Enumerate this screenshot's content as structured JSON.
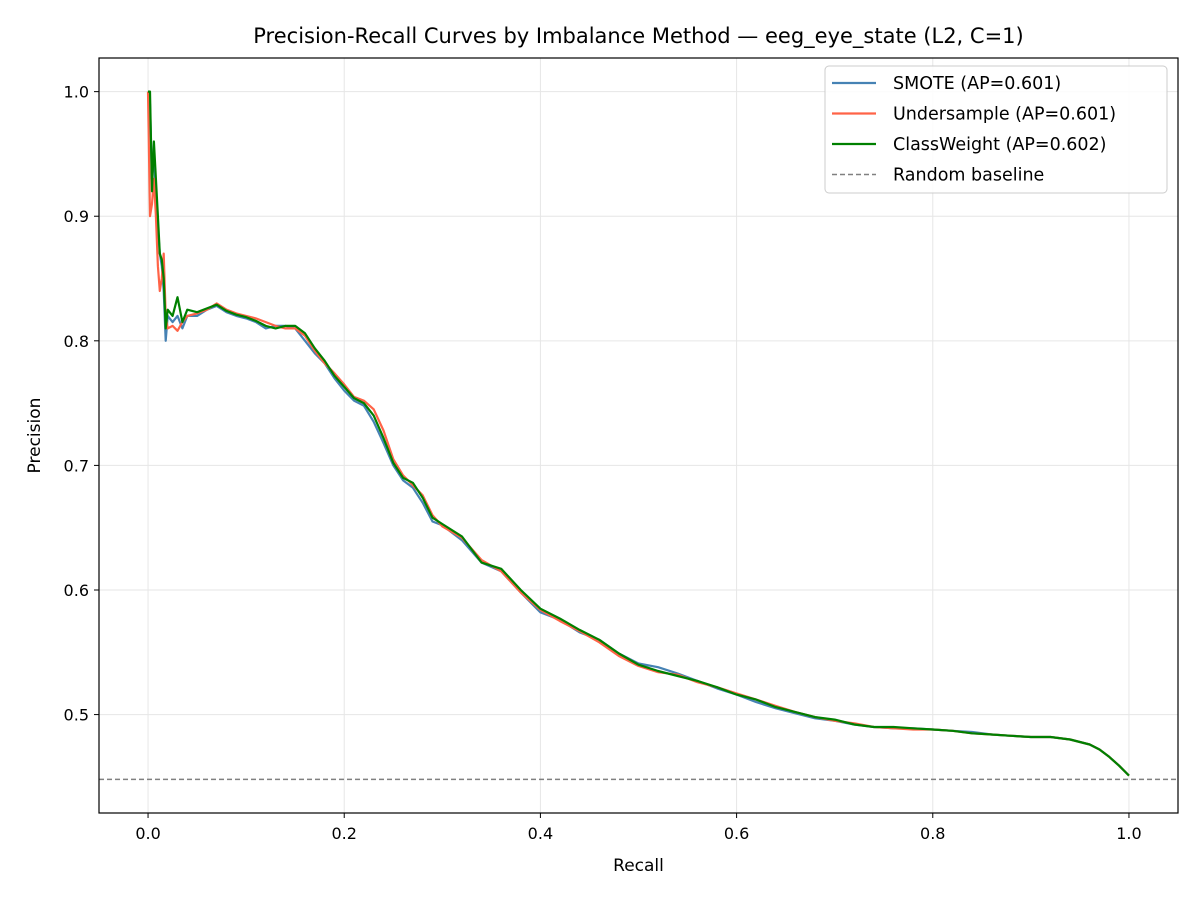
{
  "chart_data": {
    "type": "line",
    "title": "Precision-Recall Curves by Imbalance Method — eeg_eye_state (L2, C=1)",
    "xlabel": "Recall",
    "ylabel": "Precision",
    "xlim": [
      -0.05,
      1.05
    ],
    "ylim": [
      0.421,
      1.027
    ],
    "xticks": [
      0.0,
      0.2,
      0.4,
      0.6,
      0.8,
      1.0
    ],
    "xtick_labels": [
      "0.0",
      "0.2",
      "0.4",
      "0.6",
      "0.8",
      "1.0"
    ],
    "yticks": [
      0.5,
      0.6,
      0.7,
      0.8,
      0.9,
      1.0
    ],
    "ytick_labels": [
      "0.5",
      "0.6",
      "0.7",
      "0.8",
      "0.9",
      "1.0"
    ],
    "grid": true,
    "legend_position": "top-right",
    "series": [
      {
        "name": "SMOTE (AP=0.601)",
        "color": "#4682b4",
        "x": [
          0.0,
          0.002,
          0.004,
          0.006,
          0.008,
          0.01,
          0.012,
          0.014,
          0.016,
          0.018,
          0.02,
          0.025,
          0.03,
          0.035,
          0.04,
          0.05,
          0.06,
          0.07,
          0.08,
          0.09,
          0.1,
          0.11,
          0.12,
          0.13,
          0.14,
          0.15,
          0.16,
          0.17,
          0.18,
          0.19,
          0.2,
          0.21,
          0.22,
          0.23,
          0.24,
          0.25,
          0.26,
          0.27,
          0.28,
          0.29,
          0.3,
          0.32,
          0.34,
          0.36,
          0.38,
          0.4,
          0.42,
          0.44,
          0.46,
          0.48,
          0.5,
          0.52,
          0.54,
          0.56,
          0.58,
          0.6,
          0.62,
          0.64,
          0.66,
          0.68,
          0.7,
          0.72,
          0.74,
          0.76,
          0.78,
          0.8,
          0.82,
          0.84,
          0.86,
          0.88,
          0.9,
          0.92,
          0.94,
          0.96,
          0.97,
          0.98,
          0.99,
          1.0
        ],
        "y": [
          1.0,
          0.99,
          0.93,
          0.95,
          0.92,
          0.89,
          0.87,
          0.86,
          0.84,
          0.8,
          0.82,
          0.815,
          0.82,
          0.81,
          0.82,
          0.82,
          0.825,
          0.828,
          0.823,
          0.82,
          0.818,
          0.815,
          0.81,
          0.812,
          0.812,
          0.81,
          0.8,
          0.79,
          0.782,
          0.77,
          0.76,
          0.752,
          0.748,
          0.735,
          0.718,
          0.7,
          0.688,
          0.682,
          0.67,
          0.655,
          0.652,
          0.64,
          0.622,
          0.615,
          0.598,
          0.582,
          0.576,
          0.566,
          0.56,
          0.549,
          0.541,
          0.538,
          0.533,
          0.527,
          0.521,
          0.516,
          0.51,
          0.505,
          0.501,
          0.497,
          0.495,
          0.492,
          0.49,
          0.489,
          0.489,
          0.488,
          0.487,
          0.486,
          0.484,
          0.483,
          0.482,
          0.482,
          0.48,
          0.476,
          0.472,
          0.466,
          0.459,
          0.451
        ]
      },
      {
        "name": "Undersample (AP=0.601)",
        "color": "#ff6347",
        "x": [
          0.0,
          0.002,
          0.004,
          0.006,
          0.008,
          0.01,
          0.012,
          0.014,
          0.016,
          0.018,
          0.02,
          0.025,
          0.03,
          0.035,
          0.04,
          0.05,
          0.06,
          0.07,
          0.08,
          0.09,
          0.1,
          0.11,
          0.12,
          0.13,
          0.14,
          0.15,
          0.16,
          0.17,
          0.18,
          0.19,
          0.2,
          0.21,
          0.22,
          0.23,
          0.24,
          0.25,
          0.26,
          0.27,
          0.28,
          0.29,
          0.3,
          0.32,
          0.34,
          0.36,
          0.38,
          0.4,
          0.42,
          0.44,
          0.46,
          0.48,
          0.5,
          0.52,
          0.54,
          0.56,
          0.58,
          0.6,
          0.62,
          0.64,
          0.66,
          0.68,
          0.7,
          0.72,
          0.74,
          0.76,
          0.78,
          0.8,
          0.82,
          0.84,
          0.86,
          0.88,
          0.9,
          0.92,
          0.94,
          0.96,
          0.97,
          0.98,
          0.99,
          1.0
        ],
        "y": [
          1.0,
          0.9,
          0.91,
          0.93,
          0.9,
          0.86,
          0.84,
          0.85,
          0.87,
          0.82,
          0.81,
          0.812,
          0.808,
          0.815,
          0.82,
          0.822,
          0.825,
          0.83,
          0.825,
          0.822,
          0.82,
          0.818,
          0.815,
          0.812,
          0.81,
          0.81,
          0.804,
          0.792,
          0.782,
          0.774,
          0.765,
          0.755,
          0.752,
          0.745,
          0.728,
          0.705,
          0.692,
          0.684,
          0.676,
          0.66,
          0.651,
          0.642,
          0.624,
          0.615,
          0.598,
          0.584,
          0.575,
          0.567,
          0.558,
          0.547,
          0.539,
          0.534,
          0.532,
          0.526,
          0.522,
          0.517,
          0.512,
          0.507,
          0.502,
          0.498,
          0.495,
          0.493,
          0.49,
          0.489,
          0.488,
          0.488,
          0.487,
          0.485,
          0.484,
          0.483,
          0.482,
          0.482,
          0.48,
          0.476,
          0.472,
          0.466,
          0.459,
          0.451
        ]
      },
      {
        "name": "ClassWeight (AP=0.602)",
        "color": "#008000",
        "x": [
          0.0,
          0.002,
          0.004,
          0.006,
          0.008,
          0.01,
          0.012,
          0.014,
          0.016,
          0.018,
          0.02,
          0.025,
          0.03,
          0.035,
          0.04,
          0.05,
          0.06,
          0.07,
          0.08,
          0.09,
          0.1,
          0.11,
          0.12,
          0.13,
          0.14,
          0.15,
          0.16,
          0.17,
          0.18,
          0.19,
          0.2,
          0.21,
          0.22,
          0.23,
          0.24,
          0.25,
          0.26,
          0.27,
          0.28,
          0.29,
          0.3,
          0.32,
          0.34,
          0.36,
          0.38,
          0.4,
          0.42,
          0.44,
          0.46,
          0.48,
          0.5,
          0.52,
          0.54,
          0.56,
          0.58,
          0.6,
          0.62,
          0.64,
          0.66,
          0.68,
          0.7,
          0.72,
          0.74,
          0.76,
          0.78,
          0.8,
          0.82,
          0.84,
          0.86,
          0.88,
          0.9,
          0.92,
          0.94,
          0.96,
          0.97,
          0.98,
          0.99,
          1.0
        ],
        "y": [
          1.0,
          1.0,
          0.92,
          0.96,
          0.93,
          0.9,
          0.87,
          0.865,
          0.85,
          0.81,
          0.825,
          0.82,
          0.835,
          0.815,
          0.825,
          0.823,
          0.826,
          0.829,
          0.824,
          0.821,
          0.819,
          0.816,
          0.812,
          0.81,
          0.812,
          0.812,
          0.806,
          0.794,
          0.784,
          0.772,
          0.763,
          0.754,
          0.75,
          0.74,
          0.722,
          0.702,
          0.69,
          0.686,
          0.674,
          0.658,
          0.653,
          0.643,
          0.622,
          0.617,
          0.6,
          0.585,
          0.577,
          0.568,
          0.56,
          0.549,
          0.54,
          0.535,
          0.531,
          0.527,
          0.522,
          0.516,
          0.512,
          0.506,
          0.502,
          0.498,
          0.496,
          0.492,
          0.49,
          0.49,
          0.489,
          0.488,
          0.487,
          0.485,
          0.484,
          0.483,
          0.482,
          0.482,
          0.48,
          0.476,
          0.472,
          0.466,
          0.459,
          0.451
        ]
      }
    ],
    "baseline": {
      "name": "Random baseline",
      "color": "#808080",
      "y": 0.448
    }
  }
}
